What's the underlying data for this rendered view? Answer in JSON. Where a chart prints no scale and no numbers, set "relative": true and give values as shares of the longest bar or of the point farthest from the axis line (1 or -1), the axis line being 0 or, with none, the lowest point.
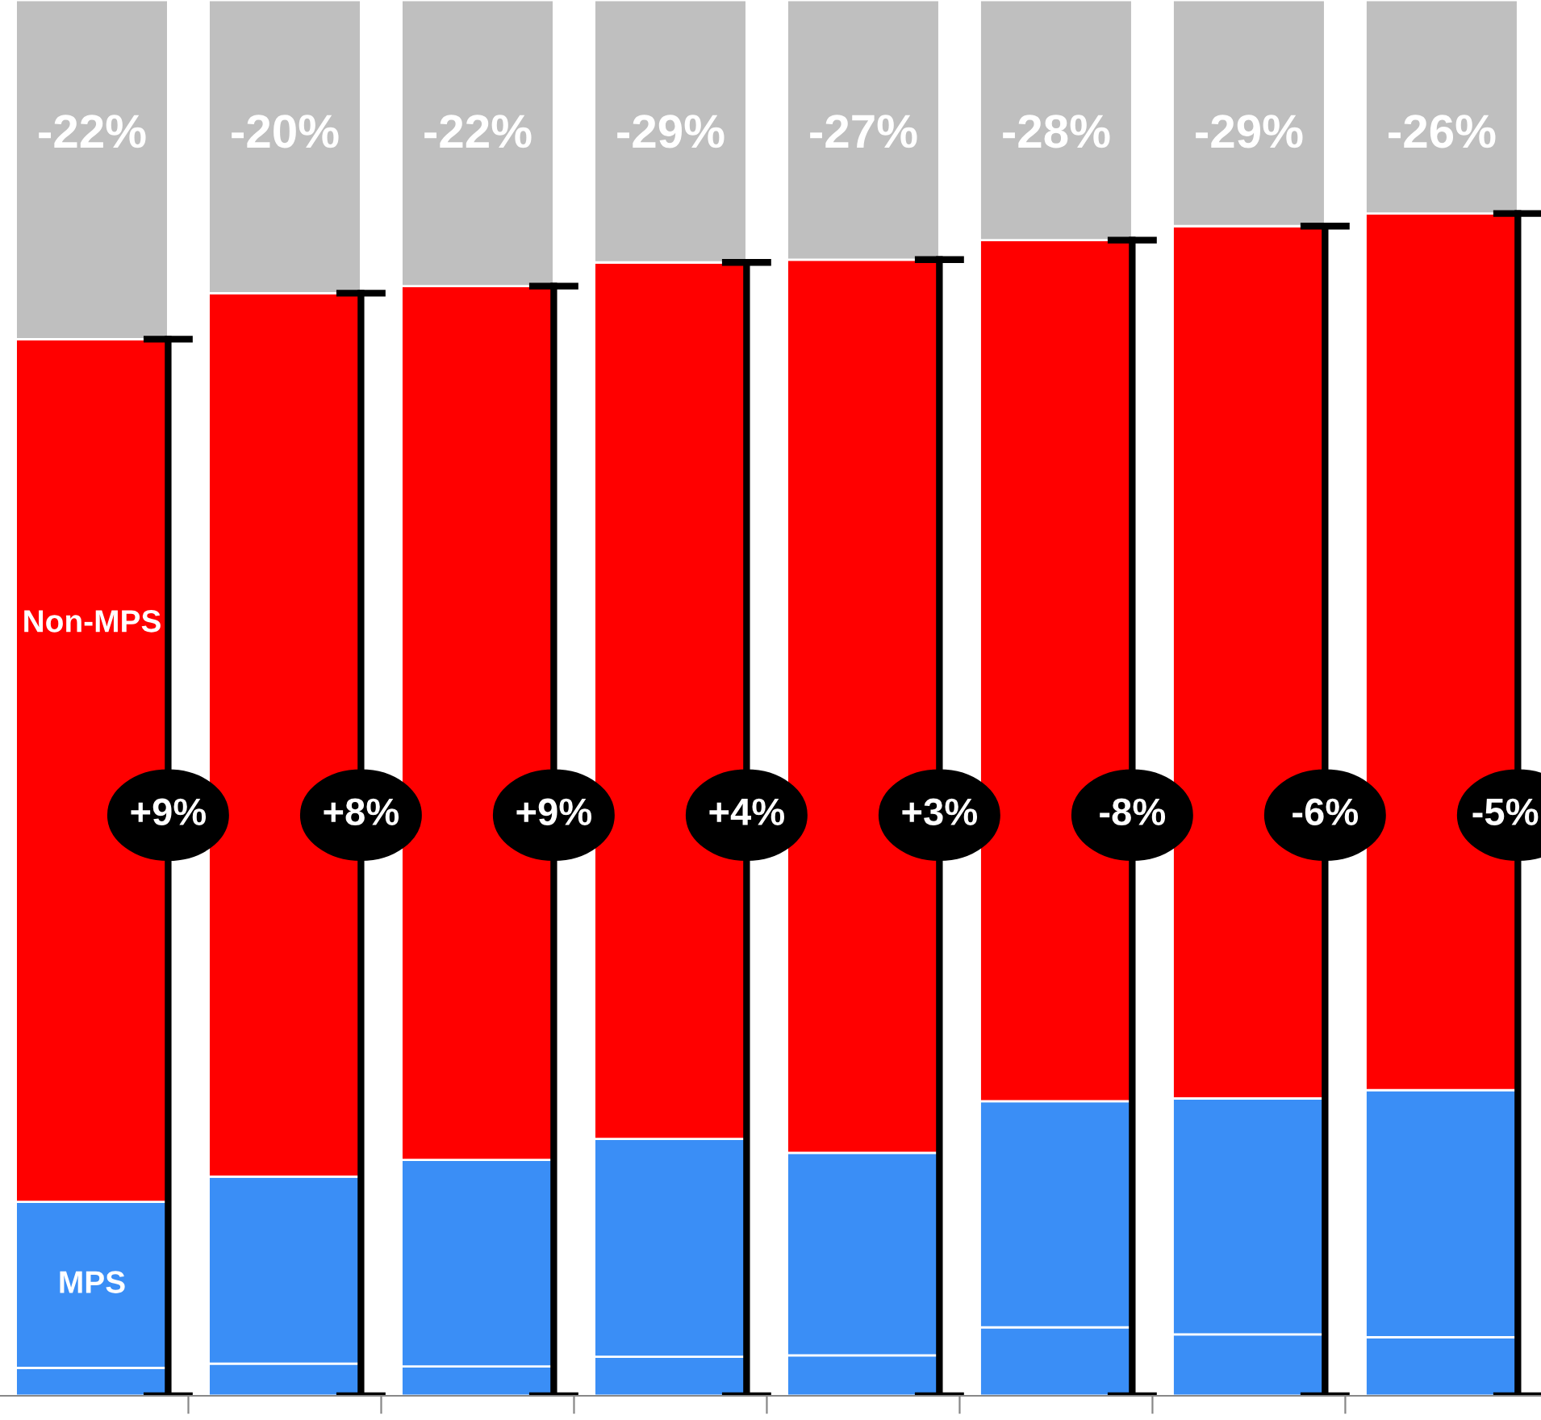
{
  "chart_data": {
    "type": "bar",
    "stacked": true,
    "relative": true,
    "categories": [
      null,
      null,
      null,
      null,
      null,
      null,
      null,
      null
    ],
    "series": [
      {
        "color": "#3a8ef6",
        "values": [
          0.02,
          0.023,
          0.021,
          0.028,
          0.029,
          0.049,
          0.044,
          0.042
        ]
      },
      {
        "name": "MPS",
        "color": "#3a8ef6",
        "values": [
          0.119,
          0.134,
          0.148,
          0.156,
          0.145,
          0.162,
          0.169,
          0.177
        ]
      },
      {
        "name": "Non-MPS",
        "color": "#ff0000",
        "values": [
          0.618,
          0.633,
          0.626,
          0.628,
          0.64,
          0.617,
          0.625,
          0.628
        ]
      },
      {
        "color": "#bfbfbf",
        "values": [
          0.243,
          0.21,
          0.205,
          0.188,
          0.186,
          0.172,
          0.162,
          0.153
        ]
      }
    ],
    "annotations": [
      "-22%",
      "-20%",
      "-22%",
      "-29%",
      "-27%",
      "-28%",
      "-29%",
      "-26%",
      "+9%",
      "+8%",
      "+9%",
      "+4%",
      "+3%",
      "-8%",
      "-6%",
      "-5%"
    ]
  }
}
